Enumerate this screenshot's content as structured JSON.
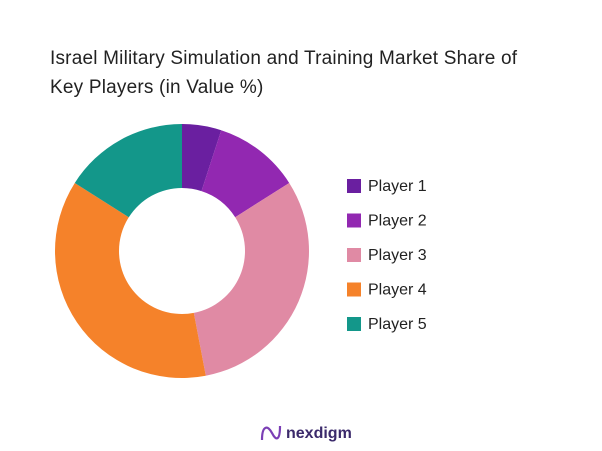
{
  "chart_data": {
    "type": "donut",
    "title": "Israel Military Simulation and Training Market Share of Key Players (in Value %)",
    "categories": [
      "Player 1",
      "Player 2",
      "Player 3",
      "Player 4",
      "Player 5"
    ],
    "values": [
      5,
      11,
      31,
      37,
      16
    ],
    "colors": [
      "#6a1fa0",
      "#9228b1",
      "#e08aa4",
      "#f5822a",
      "#13978a"
    ],
    "legend": "right"
  },
  "brand": "nexdigm"
}
